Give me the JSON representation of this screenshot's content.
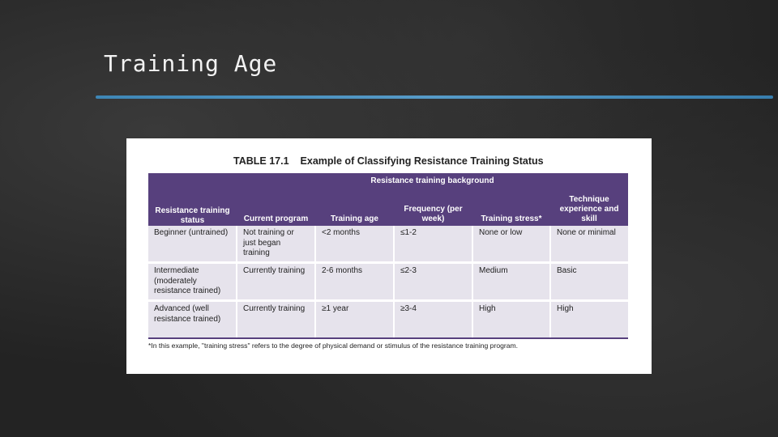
{
  "slide": {
    "title": "Training Age"
  },
  "table": {
    "number": "TABLE 17.1",
    "title": "Example of Classifying Resistance Training Status",
    "group_header": "Resistance training background",
    "columns": [
      "Resistance training status",
      "Current program",
      "Training age",
      "Frequency (per week)",
      "Training stress*",
      "Technique experience and skill"
    ],
    "rows": [
      [
        "Beginner (untrained)",
        "Not training or just began training",
        "<2 months",
        "≤1-2",
        "None or low",
        "None or minimal"
      ],
      [
        "Intermediate (moderately resistance trained)",
        "Currently training",
        "2-6 months",
        "≤2-3",
        "Medium",
        "Basic"
      ],
      [
        "Advanced (well resistance trained)",
        "Currently training",
        "≥1 year",
        "≥3-4",
        "High",
        "High"
      ]
    ],
    "footnote": "*In this example, \"training stress\" refers to the degree of physical demand or stimulus of the resistance training program."
  },
  "colors": {
    "header_purple": "#57407d",
    "cell_gray": "#e6e3ec",
    "title_rule_blue": "#4a9bd0"
  }
}
